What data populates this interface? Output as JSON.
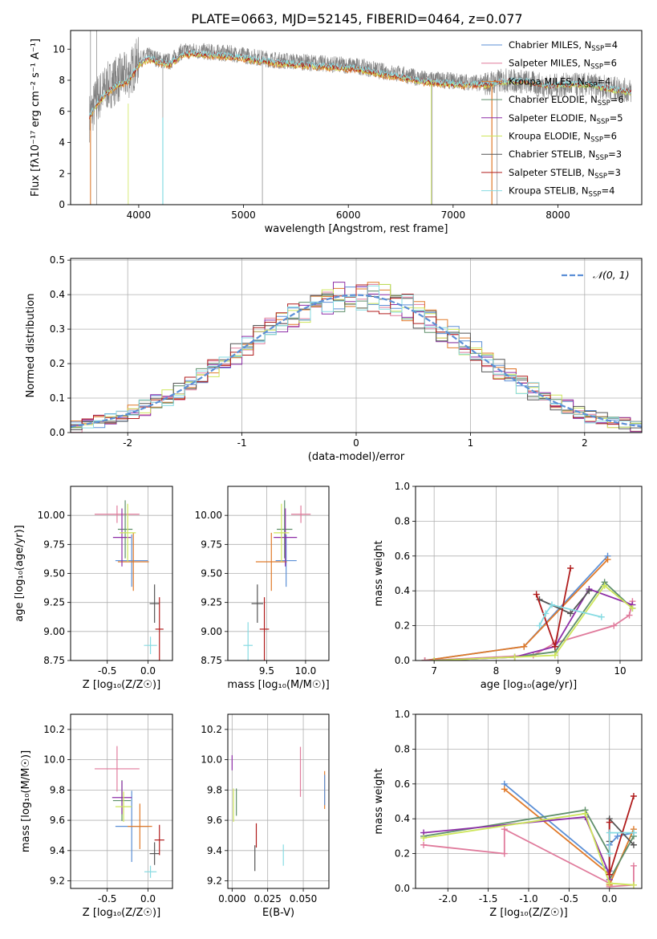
{
  "title": "PLATE=0663, MJD=52145, FIBERID=0464, z=0.077",
  "colors": {
    "Chabrier MILES": "#5b8fd6",
    "Salpeter MILES": "#e07b9c",
    "Kroupa MILES": "#e07a2a",
    "Chabrier ELODIE": "#5e8f6a",
    "Salpeter ELODIE": "#8e2fa8",
    "Kroupa ELODIE": "#cde65a",
    "Chabrier STELIB": "#555555",
    "Salpeter STELIB": "#b01c1c",
    "Kroupa STELIB": "#86dbe2",
    "observed": "#808080",
    "normal": "#5b8fd6"
  },
  "legend_models": [
    {
      "name": "Chabrier MILES",
      "nssp": "4"
    },
    {
      "name": "Salpeter MILES",
      "nssp": "6"
    },
    {
      "name": "Kroupa MILES",
      "nssp": "4"
    },
    {
      "name": "Chabrier ELODIE",
      "nssp": "6"
    },
    {
      "name": "Salpeter ELODIE",
      "nssp": "5"
    },
    {
      "name": "Kroupa ELODIE",
      "nssp": "6"
    },
    {
      "name": "Chabrier STELIB",
      "nssp": "3"
    },
    {
      "name": "Salpeter STELIB",
      "nssp": "3"
    },
    {
      "name": "Kroupa STELIB",
      "nssp": "4"
    }
  ],
  "chart_data": [
    {
      "id": "spectrum",
      "type": "line",
      "xlabel": "wavelength [Angstrom, rest frame]",
      "ylabel": "Flux [fλ10⁻¹⁷ erg cm⁻² s⁻¹ A⁻¹]",
      "xlim": [
        3350,
        8800
      ],
      "ylim": [
        0,
        11.2
      ],
      "xticks": [
        4000,
        5000,
        6000,
        7000,
        8000
      ],
      "yticks": [
        0,
        2,
        4,
        6,
        8,
        10
      ],
      "series": [
        {
          "name": "observed",
          "x": [
            3530,
            3600,
            3700,
            3800,
            3900,
            4000,
            4100,
            4200,
            4300,
            4400,
            4500,
            4700,
            4900,
            5100,
            5300,
            5500,
            5700,
            5900,
            6100,
            6300,
            6500,
            6700,
            6900,
            7100,
            7300,
            7500,
            7700,
            7900,
            8100,
            8300,
            8500,
            8700
          ],
          "y": [
            5.6,
            6.8,
            7.6,
            8.1,
            8.3,
            9.3,
            9.6,
            9.3,
            9.2,
            9.8,
            9.9,
            9.8,
            9.7,
            9.5,
            9.3,
            9.2,
            9.1,
            9.0,
            8.9,
            8.6,
            8.4,
            8.1,
            8.0,
            7.9,
            7.8,
            8.0,
            7.9,
            7.6,
            7.7,
            7.7,
            7.5,
            7.3
          ]
        },
        {
          "name": "model",
          "x": [
            3530,
            3600,
            3700,
            3800,
            3900,
            4000,
            4100,
            4200,
            4300,
            4400,
            4500,
            4700,
            4900,
            5100,
            5300,
            5500,
            5700,
            5900,
            6100,
            6300,
            6500,
            6700,
            6900,
            7100,
            7300,
            7500,
            7700,
            7900,
            8100,
            8300,
            8500,
            8700
          ],
          "y": [
            5.6,
            6.5,
            7.2,
            7.7,
            7.9,
            9.0,
            9.4,
            9.1,
            9.0,
            9.6,
            9.7,
            9.6,
            9.5,
            9.3,
            9.1,
            9.0,
            8.9,
            8.8,
            8.7,
            8.4,
            8.2,
            7.9,
            7.8,
            7.7,
            7.7,
            7.9,
            7.9,
            7.6,
            7.7,
            7.7,
            7.4,
            7.2
          ]
        }
      ]
    },
    {
      "id": "residuals",
      "type": "line",
      "xlabel": "(data-model)/error",
      "ylabel": "Normed distribution",
      "xlim": [
        -2.5,
        2.5
      ],
      "ylim": [
        0,
        0.505
      ],
      "xticks": [
        -2,
        -1,
        0,
        1,
        2
      ],
      "yticks": [
        0.0,
        0.1,
        0.2,
        0.3,
        0.4,
        0.5
      ],
      "legend": "𝒩(0, 1)",
      "bin_width": 0.1
    },
    {
      "id": "age_vs_Z",
      "type": "scatter",
      "xlabel": "Z [log₁₀(Z/Z☉)]",
      "ylabel": "age  [log₁₀(age/yr)]",
      "xlim": [
        -0.95,
        0.3
      ],
      "ylim": [
        8.75,
        10.25
      ],
      "xticks": [
        -0.5,
        0.0
      ],
      "yticks": [
        8.75,
        9.0,
        9.25,
        9.5,
        9.75,
        10.0
      ],
      "points": [
        {
          "m": "Salpeter MILES",
          "x": -0.38,
          "y": 10.01,
          "xe": 0.55,
          "ye": 0.15
        },
        {
          "m": "Chabrier MILES",
          "x": -0.2,
          "y": 9.61,
          "xe": 0.4,
          "ye": 0.45
        },
        {
          "m": "Kroupa MILES",
          "x": -0.18,
          "y": 9.6,
          "xe": 0.38,
          "ye": 0.5
        },
        {
          "m": "Chabrier ELODIE",
          "x": -0.28,
          "y": 9.88,
          "xe": 0.18,
          "ye": 0.5
        },
        {
          "m": "Salpeter ELODIE",
          "x": -0.32,
          "y": 9.81,
          "xe": 0.22,
          "ye": 0.5
        },
        {
          "m": "Kroupa ELODIE",
          "x": -0.25,
          "y": 9.85,
          "xe": 0.2,
          "ye": 0.5
        },
        {
          "m": "Chabrier STELIB",
          "x": 0.08,
          "y": 9.24,
          "xe": 0.12,
          "ye": 0.33
        },
        {
          "m": "Salpeter STELIB",
          "x": 0.14,
          "y": 9.02,
          "xe": 0.1,
          "ye": 0.55
        },
        {
          "m": "Kroupa STELIB",
          "x": 0.03,
          "y": 8.88,
          "xe": 0.16,
          "ye": 0.15
        }
      ]
    },
    {
      "id": "age_vs_mass",
      "type": "scatter",
      "xlabel": "mass [log₁₀(M/M☉)]",
      "ylabel": "",
      "xlim": [
        9.0,
        10.3
      ],
      "ylim": [
        8.75,
        10.25
      ],
      "xticks": [
        9.5,
        10.0
      ],
      "yticks": [
        8.75,
        9.0,
        9.25,
        9.5,
        9.75,
        10.0
      ],
      "points": [
        {
          "m": "Salpeter MILES",
          "x": 9.94,
          "y": 10.01,
          "xe": 0.25,
          "ye": 0.15
        },
        {
          "m": "Chabrier MILES",
          "x": 9.75,
          "y": 9.61,
          "xe": 0.27,
          "ye": 0.45
        },
        {
          "m": "Kroupa MILES",
          "x": 9.56,
          "y": 9.6,
          "xe": 0.4,
          "ye": 0.5
        },
        {
          "m": "Chabrier ELODIE",
          "x": 9.73,
          "y": 9.88,
          "xe": 0.2,
          "ye": 0.5
        },
        {
          "m": "Salpeter ELODIE",
          "x": 9.74,
          "y": 9.81,
          "xe": 0.3,
          "ye": 0.5
        },
        {
          "m": "Kroupa ELODIE",
          "x": 9.69,
          "y": 9.85,
          "xe": 0.2,
          "ye": 0.5
        },
        {
          "m": "Chabrier STELIB",
          "x": 9.38,
          "y": 9.24,
          "xe": 0.15,
          "ye": 0.33
        },
        {
          "m": "Salpeter STELIB",
          "x": 9.47,
          "y": 9.02,
          "xe": 0.12,
          "ye": 0.55
        },
        {
          "m": "Kroupa STELIB",
          "x": 9.26,
          "y": 8.88,
          "xe": 0.12,
          "ye": 0.4
        }
      ]
    },
    {
      "id": "weight_vs_age",
      "type": "line",
      "xlabel": "age  [log₁₀(age/yr)]",
      "ylabel": "mass weight",
      "xlim": [
        6.7,
        10.35
      ],
      "ylim": [
        0,
        1.0
      ],
      "xticks": [
        7,
        8,
        9,
        10
      ],
      "yticks": [
        0.0,
        0.2,
        0.4,
        0.6,
        0.8,
        1.0
      ],
      "series": [
        {
          "m": "Chabrier MILES",
          "x": [
            6.85,
            8.45,
            9.8
          ],
          "y": [
            0.0,
            0.08,
            0.6
          ]
        },
        {
          "m": "Kroupa MILES",
          "x": [
            6.85,
            8.45,
            9.8
          ],
          "y": [
            0.0,
            0.08,
            0.58
          ]
        },
        {
          "m": "Salpeter MILES",
          "x": [
            6.85,
            8.6,
            8.95,
            9.9,
            10.15,
            10.2
          ],
          "y": [
            0.0,
            0.03,
            0.1,
            0.2,
            0.26,
            0.34
          ]
        },
        {
          "m": "Chabrier ELODIE",
          "x": [
            7.0,
            8.3,
            8.95,
            9.75,
            10.2
          ],
          "y": [
            0.0,
            0.02,
            0.05,
            0.45,
            0.3
          ]
        },
        {
          "m": "Salpeter ELODIE",
          "x": [
            7.0,
            8.3,
            8.95,
            9.5,
            10.2
          ],
          "y": [
            0.0,
            0.02,
            0.08,
            0.41,
            0.32
          ]
        },
        {
          "m": "Kroupa ELODIE",
          "x": [
            7.0,
            8.3,
            8.95,
            9.75,
            10.2
          ],
          "y": [
            0.0,
            0.02,
            0.03,
            0.43,
            0.3
          ]
        },
        {
          "m": "Chabrier STELIB",
          "x": [
            8.7,
            9.2,
            9.5
          ],
          "y": [
            0.35,
            0.27,
            0.4
          ]
        },
        {
          "m": "Salpeter STELIB",
          "x": [
            8.65,
            8.95,
            9.2
          ],
          "y": [
            0.38,
            0.08,
            0.53
          ]
        },
        {
          "m": "Kroupa STELIB",
          "x": [
            8.7,
            8.8,
            8.9,
            9.7
          ],
          "y": [
            0.2,
            0.27,
            0.32,
            0.25
          ]
        }
      ]
    },
    {
      "id": "mass_vs_Z",
      "type": "scatter",
      "xlabel": "Z [log₁₀(Z/Z☉)]",
      "ylabel": "mass [log₁₀(M/M☉)]",
      "xlim": [
        -0.95,
        0.3
      ],
      "ylim": [
        9.15,
        10.3
      ],
      "xticks": [
        -0.5,
        0.0
      ],
      "yticks": [
        9.2,
        9.4,
        9.6,
        9.8,
        10.0,
        10.2
      ],
      "points": [
        {
          "m": "Salpeter MILES",
          "x": -0.38,
          "y": 9.94,
          "xe": 0.55,
          "ye": 0.3
        },
        {
          "m": "Chabrier MILES",
          "x": -0.2,
          "y": 9.56,
          "xe": 0.4,
          "ye": 0.47
        },
        {
          "m": "Kroupa MILES",
          "x": -0.1,
          "y": 9.56,
          "xe": 0.3,
          "ye": 0.3
        },
        {
          "m": "Chabrier ELODIE",
          "x": -0.32,
          "y": 9.73,
          "xe": 0.22,
          "ye": 0.27
        },
        {
          "m": "Salpeter ELODIE",
          "x": -0.32,
          "y": 9.75,
          "xe": 0.24,
          "ye": 0.22
        },
        {
          "m": "Kroupa ELODIE",
          "x": -0.3,
          "y": 9.69,
          "xe": 0.2,
          "ye": 0.2
        },
        {
          "m": "Chabrier STELIB",
          "x": 0.08,
          "y": 9.38,
          "xe": 0.12,
          "ye": 0.15
        },
        {
          "m": "Salpeter STELIB",
          "x": 0.14,
          "y": 9.47,
          "xe": 0.12,
          "ye": 0.2
        },
        {
          "m": "Kroupa STELIB",
          "x": 0.03,
          "y": 9.26,
          "xe": 0.15,
          "ye": 0.08
        }
      ]
    },
    {
      "id": "mass_vs_EBV",
      "type": "scatter",
      "xlabel": "E(B-V)",
      "ylabel": "",
      "xlim": [
        -0.003,
        0.068
      ],
      "ylim": [
        9.15,
        10.3
      ],
      "xticks": [
        0.0,
        0.025,
        0.05
      ],
      "xtick_labels": [
        "0.000",
        "0.025",
        "0.050"
      ],
      "yticks": [
        9.2,
        9.4,
        9.6,
        9.8,
        10.0,
        10.2
      ],
      "points": [
        {
          "m": "Salpeter ELODIE",
          "x": 0.0,
          "y": 9.98,
          "ye": 0.1
        },
        {
          "m": "Kroupa ELODIE",
          "x": 0.001,
          "y": 9.7,
          "ye": 0.22
        },
        {
          "m": "Chabrier ELODIE",
          "x": 0.003,
          "y": 9.72,
          "ye": 0.18
        },
        {
          "m": "Chabrier STELIB",
          "x": 0.016,
          "y": 9.35,
          "ye": 0.17
        },
        {
          "m": "Salpeter STELIB",
          "x": 0.017,
          "y": 9.5,
          "ye": 0.16
        },
        {
          "m": "Kroupa STELIB",
          "x": 0.036,
          "y": 9.37,
          "ye": 0.14
        },
        {
          "m": "Salpeter MILES",
          "x": 0.048,
          "y": 9.92,
          "ye": 0.33
        },
        {
          "m": "Kroupa MILES",
          "x": 0.065,
          "y": 9.8,
          "ye": 0.25
        },
        {
          "m": "Chabrier MILES",
          "x": 0.065,
          "y": 9.8,
          "ye": 0.2
        }
      ]
    },
    {
      "id": "weight_vs_Z",
      "type": "line",
      "xlabel": "Z [log₁₀(Z/Z☉)]",
      "ylabel": "mass weight",
      "xlim": [
        -2.4,
        0.4
      ],
      "ylim": [
        0,
        1.0
      ],
      "xticks": [
        -2.0,
        -1.5,
        -1.0,
        -0.5,
        0.0
      ],
      "yticks": [
        0.0,
        0.2,
        0.4,
        0.6,
        0.8,
        1.0
      ],
      "series": [
        {
          "m": "Chabrier MILES",
          "x": [
            -1.3,
            0.0,
            0.0,
            0.1,
            0.3
          ],
          "y": [
            0.6,
            0.1,
            0.25,
            0.3,
            0.32
          ]
        },
        {
          "m": "Kroupa MILES",
          "x": [
            -1.3,
            0.0,
            0.0,
            0.3
          ],
          "y": [
            0.57,
            0.08,
            0.02,
            0.34
          ]
        },
        {
          "m": "Salpeter MILES",
          "x": [
            -2.3,
            -1.3,
            -1.3,
            0.0,
            0.0,
            0.3,
            0.3
          ],
          "y": [
            0.25,
            0.2,
            0.34,
            0.03,
            0.01,
            0.02,
            0.13
          ]
        },
        {
          "m": "Chabrier ELODIE",
          "x": [
            -2.3,
            -0.3,
            0.0,
            0.0,
            0.3
          ],
          "y": [
            0.3,
            0.45,
            0.2,
            0.05,
            0.3
          ]
        },
        {
          "m": "Salpeter ELODIE",
          "x": [
            -2.3,
            -0.3,
            0.0,
            0.0
          ],
          "y": [
            0.32,
            0.41,
            0.08,
            0.05
          ]
        },
        {
          "m": "Kroupa ELODIE",
          "x": [
            -2.3,
            -0.3,
            0.0,
            0.3
          ],
          "y": [
            0.29,
            0.43,
            0.03,
            0.02
          ]
        },
        {
          "m": "Chabrier STELIB",
          "x": [
            0.0,
            0.0,
            0.3
          ],
          "y": [
            0.27,
            0.4,
            0.25
          ]
        },
        {
          "m": "Salpeter STELIB",
          "x": [
            0.0,
            0.0,
            0.3
          ],
          "y": [
            0.38,
            0.08,
            0.53
          ]
        },
        {
          "m": "Kroupa STELIB",
          "x": [
            0.0,
            0.0,
            0.3
          ],
          "y": [
            0.2,
            0.32,
            0.32
          ]
        }
      ]
    }
  ]
}
